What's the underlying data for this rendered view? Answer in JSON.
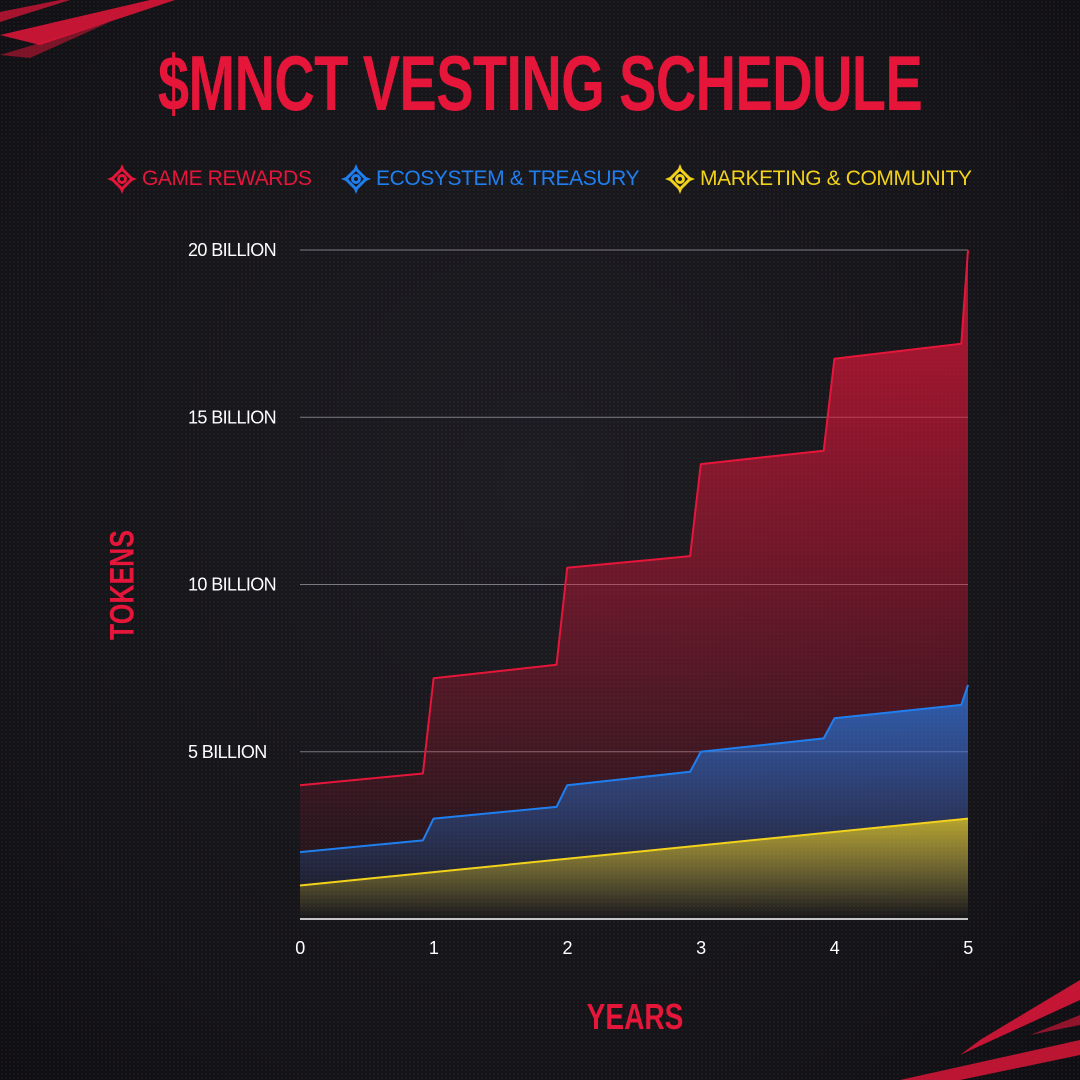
{
  "title": "$MNCT VESTING SCHEDULE",
  "legend": [
    {
      "label": "GAME REWARDS",
      "color": "#e5163a",
      "icon": "crosshair-icon"
    },
    {
      "label": "ECOSYSTEM & TREASURY",
      "color": "#1f7ff0",
      "icon": "crosshair-icon"
    },
    {
      "label": "MARKETING & COMMUNITY",
      "color": "#f2d21a",
      "icon": "crosshair-icon"
    }
  ],
  "chart_data": {
    "type": "area",
    "title": "$MNCT VESTING SCHEDULE",
    "xlabel": "YEARS",
    "ylabel": "TOKENS",
    "x_ticks": [
      "0",
      "1",
      "2",
      "3",
      "4",
      "5"
    ],
    "y_ticks": [
      "5 BILLION",
      "10 BILLION",
      "15 BILLION",
      "20 BILLION"
    ],
    "y_tick_values": [
      5,
      10,
      15,
      20
    ],
    "xlim": [
      0,
      5
    ],
    "ylim": [
      0,
      20
    ],
    "y_unit": "billion tokens",
    "grid": "horizontal",
    "legend_position": "top",
    "series": [
      {
        "name": "GAME REWARDS",
        "color": "#e5163a",
        "points": [
          [
            0,
            4.0
          ],
          [
            0.92,
            4.35
          ],
          [
            1.0,
            7.2
          ],
          [
            1.92,
            7.6
          ],
          [
            2.0,
            10.5
          ],
          [
            2.92,
            10.85
          ],
          [
            3.0,
            13.6
          ],
          [
            3.92,
            14.0
          ],
          [
            4.0,
            16.75
          ],
          [
            4.95,
            17.2
          ],
          [
            5.0,
            20.0
          ]
        ]
      },
      {
        "name": "ECOSYSTEM & TREASURY",
        "color": "#1f7ff0",
        "points": [
          [
            0,
            2.0
          ],
          [
            0.92,
            2.35
          ],
          [
            1.0,
            3.0
          ],
          [
            1.92,
            3.35
          ],
          [
            2.0,
            4.0
          ],
          [
            2.92,
            4.4
          ],
          [
            3.0,
            5.0
          ],
          [
            3.92,
            5.4
          ],
          [
            4.0,
            6.0
          ],
          [
            4.95,
            6.4
          ],
          [
            5.0,
            7.0
          ]
        ]
      },
      {
        "name": "MARKETING & COMMUNITY",
        "color": "#f2d21a",
        "points": [
          [
            0,
            1.0
          ],
          [
            5.0,
            3.0
          ]
        ]
      }
    ]
  }
}
